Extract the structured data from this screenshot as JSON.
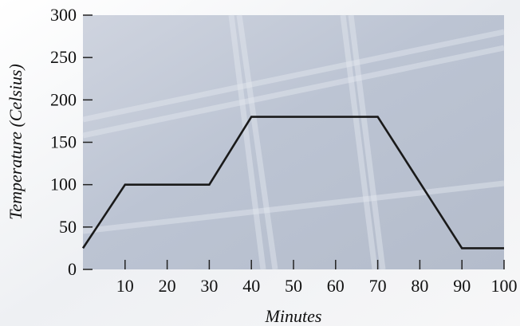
{
  "chart_data": {
    "type": "line",
    "xlabel": "Minutes",
    "ylabel": "Temperature (Celsius)",
    "xlim": [
      0,
      100
    ],
    "ylim": [
      0,
      300
    ],
    "x_ticks": [
      10,
      20,
      30,
      40,
      50,
      60,
      70,
      80,
      90,
      100
    ],
    "y_ticks": [
      0,
      50,
      100,
      150,
      200,
      250,
      300
    ],
    "grid": false,
    "series": [
      {
        "x": [
          0,
          10,
          30,
          40,
          70,
          90,
          100
        ],
        "y": [
          25,
          100,
          100,
          180,
          180,
          25,
          25
        ]
      }
    ],
    "colors": {
      "line": "#1a1a1a",
      "plot_background": "#c3cad8",
      "page_background": "#f3f3f4",
      "tick": "#222222"
    }
  }
}
